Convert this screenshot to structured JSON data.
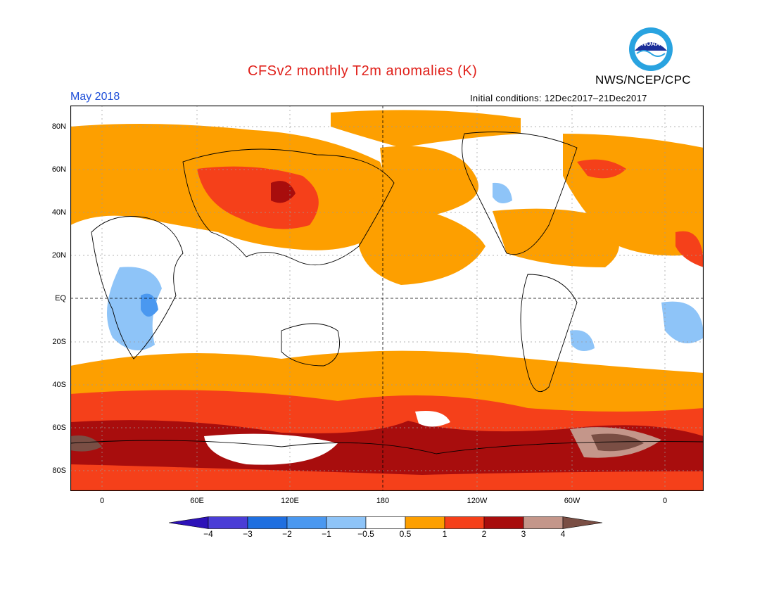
{
  "header": {
    "title": "CFSv2 monthly T2m anomalies (K)",
    "agency": "NWS/NCEP/CPC",
    "valid_month": "May 2018",
    "initial_conditions": "Initial conditions: 12Dec2017–21Dec2017",
    "logo_text": "NOAA"
  },
  "map": {
    "lat_labels": [
      "80N",
      "60N",
      "40N",
      "20N",
      "EQ",
      "20S",
      "40S",
      "60S",
      "80S"
    ],
    "lon_labels": [
      "0",
      "60E",
      "120E",
      "180",
      "120W",
      "60W",
      "0"
    ]
  },
  "colorbar": {
    "labels": [
      "−4",
      "−3",
      "−2",
      "−1",
      "−0.5",
      "0.5",
      "1",
      "2",
      "3",
      "4"
    ],
    "colors": [
      "#2d12b8",
      "#4a3dd6",
      "#1f6fe0",
      "#4a98f0",
      "#8ec4f8",
      "#ffffff",
      "#fd9f00",
      "#f5401a",
      "#a80d0d",
      "#c4968a",
      "#7a4e44"
    ]
  }
}
